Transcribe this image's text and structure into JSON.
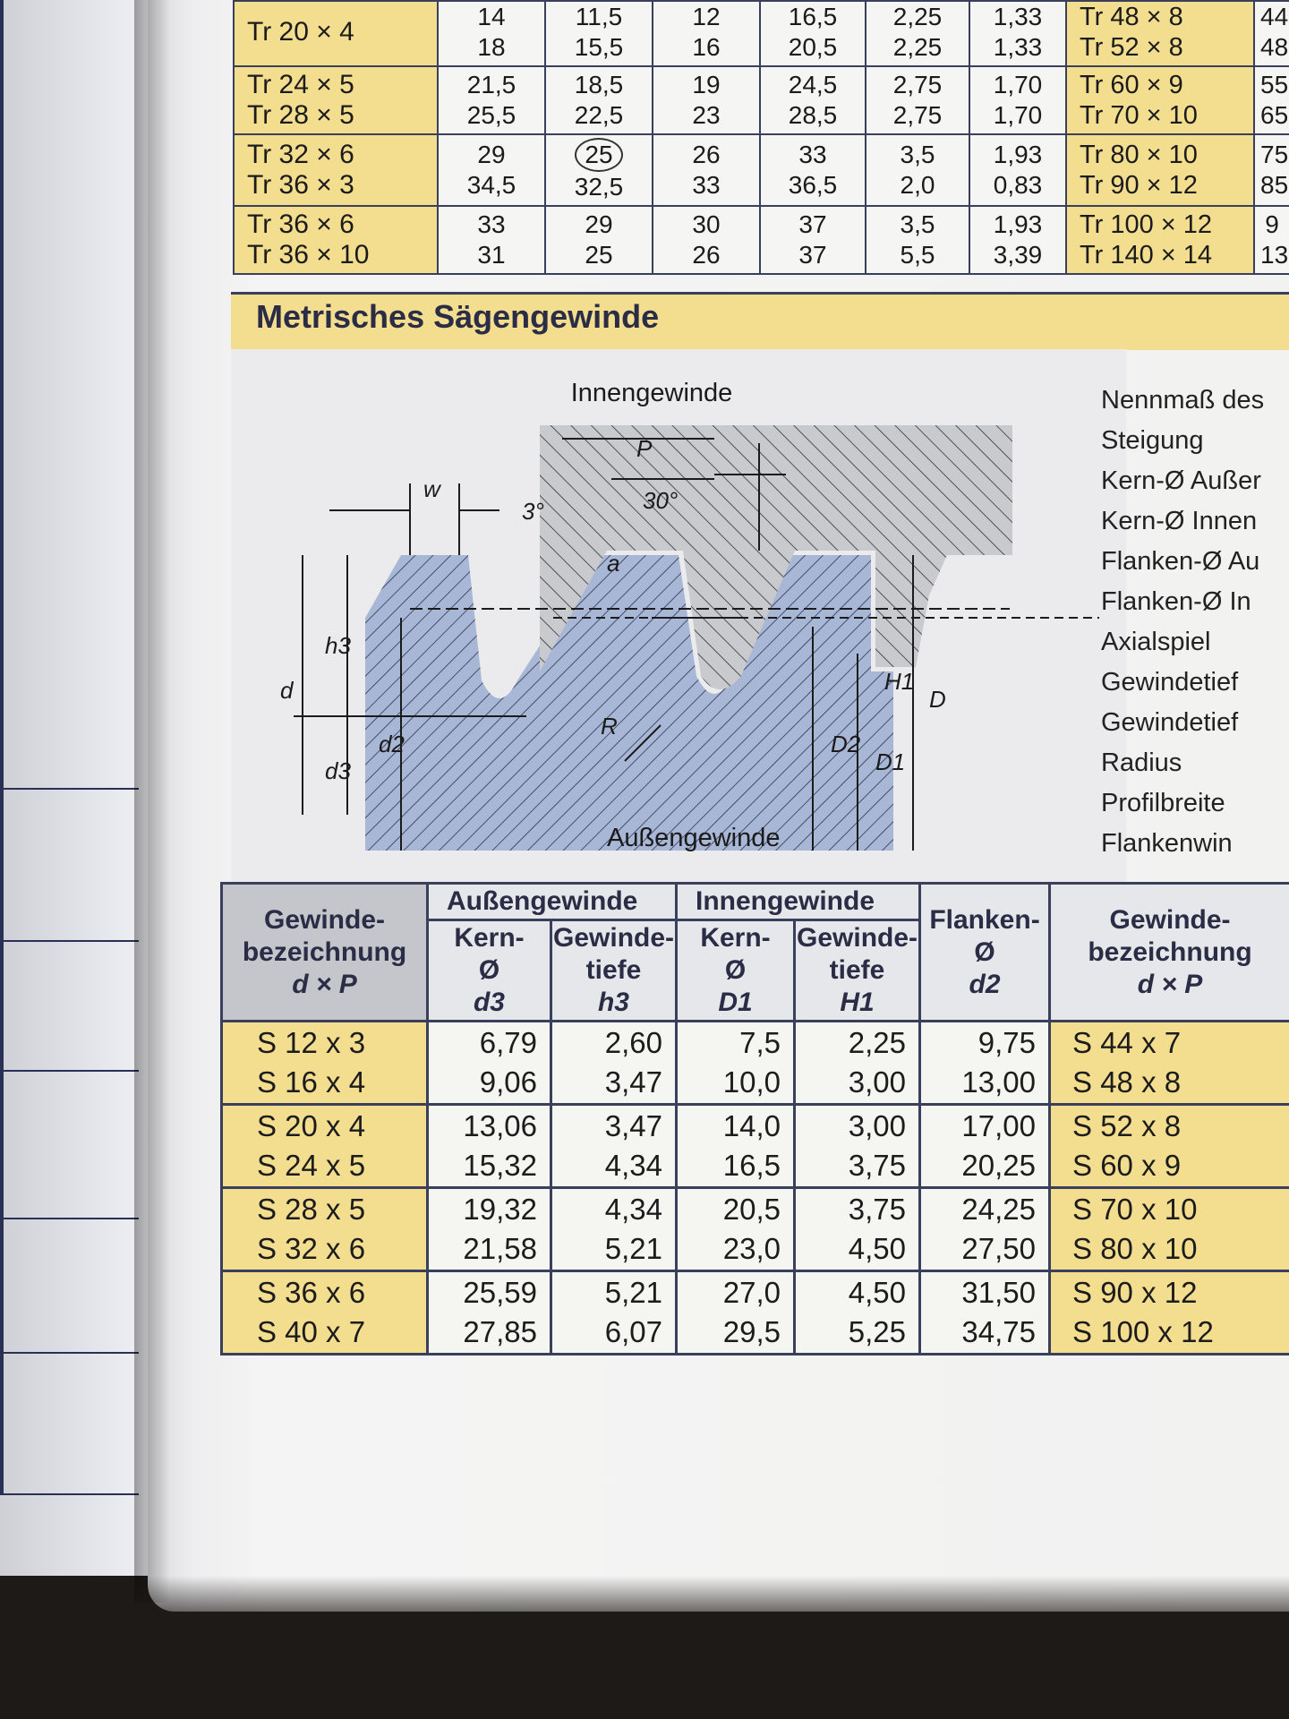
{
  "trapezoid_table": {
    "rows": [
      {
        "d1": "Tr 20 ×   4",
        "c1": [
          "14",
          "18"
        ],
        "c2": [
          "11,5",
          "15,5"
        ],
        "c3": [
          "12",
          "16"
        ],
        "c4": [
          "16,5",
          "20,5"
        ],
        "c5": [
          "2,25",
          "2,25"
        ],
        "c6": [
          "1,33",
          "1,33"
        ],
        "d2": [
          "Tr  48 ×  8",
          "Tr  52 ×  8"
        ],
        "c7": [
          "44",
          "48"
        ]
      },
      {
        "d1": [
          "Tr 24 ×   5",
          "Tr 28 ×   5"
        ],
        "c1": [
          "21,5",
          "25,5"
        ],
        "c2": [
          "18,5",
          "22,5"
        ],
        "c3": [
          "19",
          "23"
        ],
        "c4": [
          "24,5",
          "28,5"
        ],
        "c5": [
          "2,75",
          "2,75"
        ],
        "c6": [
          "1,70",
          "1,70"
        ],
        "d2": [
          "Tr  60 ×  9",
          "Tr  70 × 10"
        ],
        "c7": [
          "55",
          "65"
        ]
      },
      {
        "d1": [
          "Tr 32 ×   6",
          "Tr 36 ×   3"
        ],
        "c1": [
          "29",
          "34,5"
        ],
        "c2": [
          "25",
          "32,5"
        ],
        "c3": [
          "26",
          "33"
        ],
        "c4": [
          "33",
          "36,5"
        ],
        "c5": [
          "3,5",
          "2,0"
        ],
        "c6": [
          "1,93",
          "0,83"
        ],
        "d2": [
          "Tr  80 × 10",
          "Tr  90 × 12"
        ],
        "c7": [
          "75",
          "85"
        ]
      },
      {
        "d1": [
          "Tr 36 ×   6",
          "Tr 36 × 10"
        ],
        "c1": [
          "33",
          "31"
        ],
        "c2": [
          "29",
          "25"
        ],
        "c3": [
          "30",
          "26"
        ],
        "c4": [
          "37",
          "37"
        ],
        "c5": [
          "3,5",
          "5,5"
        ],
        "c6": [
          "1,93",
          "3,39"
        ],
        "d2": [
          "Tr 100 × 12",
          "Tr 140 × 14"
        ],
        "c7": [
          "9",
          "13"
        ]
      }
    ]
  },
  "section_title": "Metrisches Sägengewinde",
  "diagram": {
    "label_top": "Innengewinde",
    "label_bottom": "Außengewinde",
    "letters": {
      "w": "w",
      "P": "P",
      "angle30": "30°",
      "angle3": "3°",
      "a": "a",
      "R": "R",
      "d": "d",
      "h3": "h3",
      "d3": "d3",
      "d2": "d2",
      "D2": "D2",
      "D1": "D1",
      "D": "D",
      "H1": "H1"
    }
  },
  "legend": [
    "Nennmaß des",
    "Steigung",
    "Kern-Ø Außer",
    "Kern-Ø Innen",
    "Flanken-Ø Au",
    "Flanken-Ø In",
    "Axialspiel",
    "Gewindetief",
    "Gewindetief",
    "Radius",
    "Profilbreite",
    "Flankenwin"
  ],
  "buttress_table": {
    "group_outer": "Außengewinde",
    "group_inner": "Innengewinde",
    "col_designation": [
      "Gewinde-",
      "bezeichnung",
      "d × P"
    ],
    "col_kern_outer": [
      "Kern-",
      "Ø",
      "d3"
    ],
    "col_tiefe_outer": [
      "Gewinde-",
      "tiefe",
      "h3"
    ],
    "col_kern_inner": [
      "Kern-",
      "Ø",
      "D1"
    ],
    "col_tiefe_inner": [
      "Gewinde-",
      "tiefe",
      "H1"
    ],
    "col_flanken": [
      "Flanken-",
      "Ø",
      "d2"
    ],
    "col_designation2": [
      "Gewinde-",
      "bezeichnung",
      "d × P"
    ],
    "rows": [
      {
        "des": [
          "S 12 x 3",
          "S 16 x 4"
        ],
        "d3": [
          "6,79",
          "9,06"
        ],
        "h3": [
          "2,60",
          "3,47"
        ],
        "D1": [
          "7,5",
          "10,0"
        ],
        "H1": [
          "2,25",
          "3,00"
        ],
        "d2": [
          "9,75",
          "13,00"
        ],
        "des2": [
          "S  44 x  7",
          "S  48 x  8"
        ]
      },
      {
        "des": [
          "S 20 x 4",
          "S 24 x 5"
        ],
        "d3": [
          "13,06",
          "15,32"
        ],
        "h3": [
          "3,47",
          "4,34"
        ],
        "D1": [
          "14,0",
          "16,5"
        ],
        "H1": [
          "3,00",
          "3,75"
        ],
        "d2": [
          "17,00",
          "20,25"
        ],
        "des2": [
          "S  52 x  8",
          "S  60 x  9"
        ]
      },
      {
        "des": [
          "S 28 x 5",
          "S 32 x 6"
        ],
        "d3": [
          "19,32",
          "21,58"
        ],
        "h3": [
          "4,34",
          "5,21"
        ],
        "D1": [
          "20,5",
          "23,0"
        ],
        "H1": [
          "3,75",
          "4,50"
        ],
        "d2": [
          "24,25",
          "27,50"
        ],
        "des2": [
          "S  70 x 10",
          "S  80 x 10"
        ]
      },
      {
        "des": [
          "S 36 x 6",
          "S 40 x 7"
        ],
        "d3": [
          "25,59",
          "27,85"
        ],
        "h3": [
          "5,21",
          "6,07"
        ],
        "D1": [
          "27,0",
          "29,5"
        ],
        "H1": [
          "4,50",
          "5,25"
        ],
        "d2": [
          "31,50",
          "34,75"
        ],
        "des2": [
          "S  90 x 12",
          "S 100 x 12"
        ]
      }
    ]
  }
}
